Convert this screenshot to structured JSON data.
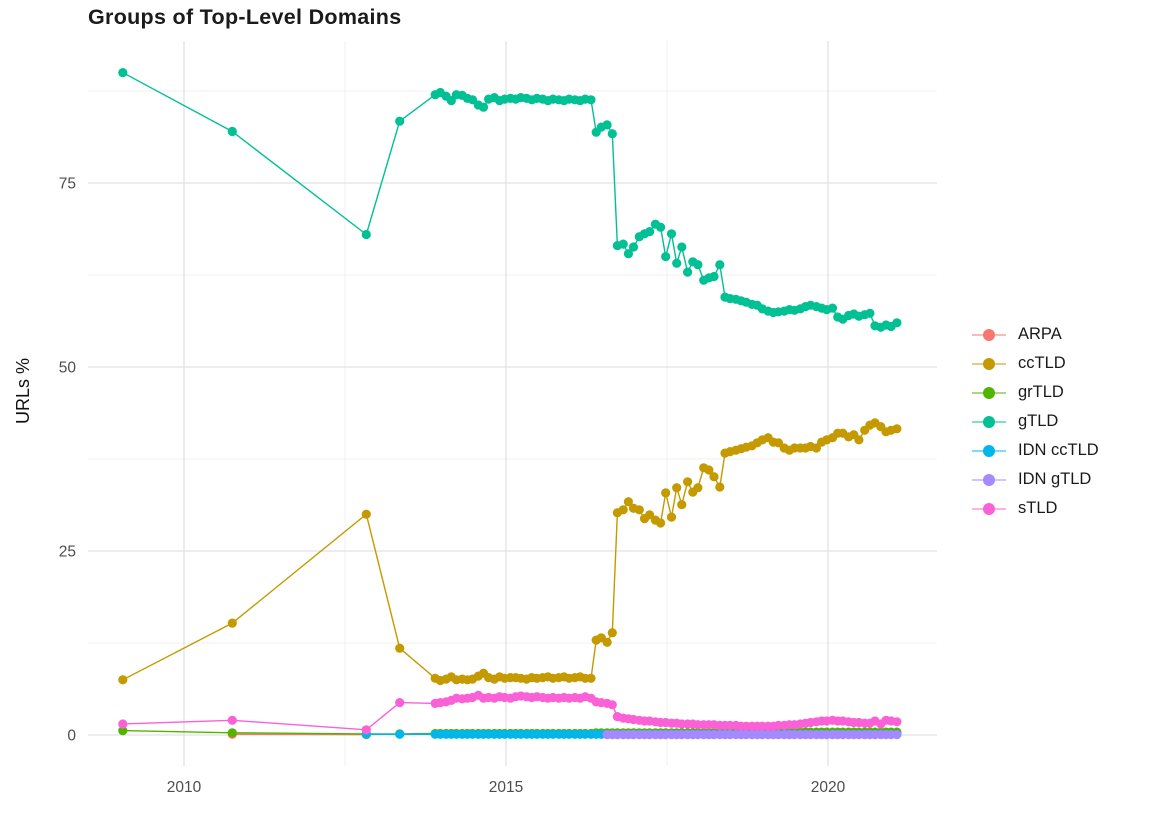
{
  "title": "Groups of Top-Level Domains",
  "y_axis_label": "URLs %",
  "colors": {
    "background": "#ffffff",
    "grid_major": "#e2e2e2",
    "grid_minor": "#f0f0f0",
    "tick_label": "#4d4d4d",
    "title_text": "#1b1b1b"
  },
  "chart_data": {
    "type": "line",
    "title": "Groups of Top-Level Domains",
    "xlabel": "",
    "ylabel": "URLs %",
    "grid": true,
    "legend_position": "right",
    "xlim": [
      2008.5,
      2021.7
    ],
    "ylim": [
      0,
      90
    ],
    "x_ticks": [
      2010,
      2015,
      2020
    ],
    "x_tick_labels": [
      "2010",
      "2015",
      "2020"
    ],
    "x_minor": [
      2012.5,
      2017.5
    ],
    "y_ticks": [
      0,
      25,
      50,
      75
    ],
    "y_tick_labels": [
      "0",
      "25",
      "50",
      "75"
    ],
    "y_minor": [
      12.5,
      37.5,
      62.5,
      87.5
    ],
    "x": [
      2009.05,
      2010.75,
      2012.83,
      2013.35,
      2013.9,
      2013.98,
      2014.07,
      2014.15,
      2014.23,
      2014.32,
      2014.4,
      2014.48,
      2014.57,
      2014.65,
      2014.73,
      2014.82,
      2014.9,
      2014.98,
      2015.07,
      2015.15,
      2015.23,
      2015.32,
      2015.4,
      2015.48,
      2015.57,
      2015.65,
      2015.73,
      2015.82,
      2015.9,
      2015.98,
      2016.07,
      2016.15,
      2016.23,
      2016.32,
      2016.4,
      2016.48,
      2016.57,
      2016.65,
      2016.73,
      2016.82,
      2016.9,
      2016.98,
      2017.07,
      2017.15,
      2017.23,
      2017.32,
      2017.4,
      2017.48,
      2017.57,
      2017.65,
      2017.73,
      2017.82,
      2017.9,
      2017.98,
      2018.07,
      2018.15,
      2018.23,
      2018.32,
      2018.4,
      2018.48,
      2018.57,
      2018.65,
      2018.73,
      2018.82,
      2018.9,
      2018.98,
      2019.07,
      2019.15,
      2019.23,
      2019.32,
      2019.4,
      2019.48,
      2019.57,
      2019.65,
      2019.73,
      2019.82,
      2019.9,
      2019.98,
      2020.07,
      2020.15,
      2020.23,
      2020.32,
      2020.4,
      2020.48,
      2020.57,
      2020.65,
      2020.73,
      2020.82,
      2020.9,
      2020.98,
      2021.07
    ],
    "series": [
      {
        "name": "ARPA",
        "color": "#F8766D",
        "values": [
          null,
          0.1,
          0.05,
          null,
          null,
          null,
          null,
          null,
          null,
          null,
          null,
          null,
          null,
          null,
          null,
          null,
          null,
          null,
          null,
          null,
          null,
          null,
          null,
          null,
          null,
          null,
          null,
          null,
          null,
          null,
          null,
          null,
          null,
          null,
          null,
          null,
          null,
          null,
          null,
          null,
          null,
          null,
          null,
          null,
          null,
          null,
          null,
          null,
          null,
          null,
          null,
          null,
          null,
          null,
          null,
          null,
          null,
          null,
          null,
          null,
          null,
          null,
          null,
          null,
          null,
          null,
          null,
          null,
          null,
          null,
          null,
          null,
          null,
          null,
          null,
          null,
          null,
          null,
          null,
          null,
          null,
          null,
          null,
          null,
          null,
          null,
          null,
          null,
          null,
          null,
          null
        ]
      },
      {
        "name": "ccTLD",
        "color": "#C49A00",
        "values": [
          7.5,
          15.2,
          30.0,
          11.8,
          7.7,
          7.4,
          7.6,
          7.9,
          7.5,
          7.6,
          7.5,
          7.6,
          8.0,
          8.4,
          7.8,
          7.6,
          7.9,
          7.7,
          7.8,
          7.8,
          7.7,
          7.6,
          7.8,
          7.7,
          7.8,
          7.9,
          7.7,
          7.8,
          7.9,
          7.7,
          7.8,
          7.9,
          7.7,
          7.7,
          12.9,
          13.2,
          12.6,
          13.9,
          30.2,
          30.6,
          31.7,
          30.8,
          30.6,
          29.4,
          29.9,
          29.2,
          28.8,
          32.9,
          29.6,
          33.6,
          31.3,
          34.4,
          33.0,
          33.6,
          36.3,
          36.0,
          35.1,
          33.7,
          38.3,
          38.5,
          38.7,
          38.9,
          39.1,
          39.3,
          39.7,
          40.1,
          40.4,
          39.8,
          39.7,
          39.0,
          38.7,
          39.0,
          39.0,
          39.0,
          39.2,
          39.0,
          39.8,
          40.1,
          40.4,
          41.0,
          41.0,
          40.5,
          40.8,
          40.1,
          41.4,
          42.1,
          42.4,
          41.9,
          41.2,
          41.4,
          41.6
        ]
      },
      {
        "name": "grTLD",
        "color": "#53B400",
        "values": [
          0.6,
          0.3,
          0.15,
          0.15,
          0.2,
          0.2,
          0.2,
          0.2,
          0.2,
          0.2,
          0.2,
          0.2,
          0.2,
          0.2,
          0.2,
          0.2,
          0.2,
          0.2,
          0.2,
          0.2,
          0.2,
          0.2,
          0.2,
          0.2,
          0.2,
          0.2,
          0.2,
          0.2,
          0.2,
          0.2,
          0.2,
          0.2,
          0.2,
          0.2,
          0.3,
          0.3,
          0.3,
          0.3,
          0.3,
          0.3,
          0.3,
          0.3,
          0.3,
          0.3,
          0.3,
          0.3,
          0.3,
          0.3,
          0.3,
          0.3,
          0.3,
          0.3,
          0.3,
          0.3,
          0.3,
          0.3,
          0.3,
          0.3,
          0.3,
          0.3,
          0.3,
          0.3,
          0.3,
          0.3,
          0.3,
          0.4,
          0.4,
          0.4,
          0.4,
          0.4,
          0.4,
          0.4,
          0.4,
          0.4,
          0.4,
          0.4,
          0.4,
          0.4,
          0.4,
          0.4,
          0.4,
          0.4,
          0.4,
          0.4,
          0.4,
          0.4,
          0.4,
          0.4,
          0.4,
          0.4,
          0.4
        ]
      },
      {
        "name": "gTLD",
        "color": "#00C094",
        "values": [
          90.0,
          82.0,
          68.0,
          83.4,
          87.0,
          87.3,
          86.8,
          86.2,
          87.0,
          86.9,
          86.5,
          86.3,
          85.6,
          85.3,
          86.4,
          86.6,
          86.2,
          86.4,
          86.5,
          86.4,
          86.6,
          86.5,
          86.3,
          86.5,
          86.4,
          86.2,
          86.4,
          86.3,
          86.2,
          86.4,
          86.3,
          86.2,
          86.4,
          86.3,
          81.9,
          82.6,
          82.9,
          81.7,
          66.5,
          66.7,
          65.4,
          66.3,
          67.7,
          68.1,
          68.4,
          69.4,
          69.0,
          65.0,
          68.1,
          64.1,
          66.3,
          62.9,
          64.3,
          63.9,
          61.8,
          62.1,
          62.3,
          63.9,
          59.5,
          59.3,
          59.2,
          59.0,
          58.8,
          58.5,
          58.4,
          57.9,
          57.6,
          57.4,
          57.5,
          57.6,
          57.8,
          57.7,
          57.9,
          58.2,
          58.4,
          58.2,
          58.0,
          57.8,
          58.0,
          56.8,
          56.5,
          57.0,
          57.2,
          56.9,
          57.1,
          57.3,
          55.6,
          55.4,
          55.7,
          55.5,
          56.0
        ]
      },
      {
        "name": "IDN ccTLD",
        "color": "#00B6EB",
        "values": [
          null,
          null,
          0.1,
          0.1,
          0.1,
          0.1,
          0.1,
          0.1,
          0.1,
          0.1,
          0.1,
          0.1,
          0.1,
          0.1,
          0.1,
          0.1,
          0.1,
          0.1,
          0.1,
          0.1,
          0.1,
          0.1,
          0.1,
          0.1,
          0.1,
          0.1,
          0.1,
          0.1,
          0.1,
          0.1,
          0.1,
          0.1,
          0.1,
          0.1,
          0.1,
          0.1,
          0.1,
          0.1,
          0.1,
          0.1,
          0.1,
          0.1,
          0.1,
          0.1,
          0.1,
          0.1,
          0.1,
          0.1,
          0.1,
          0.1,
          0.1,
          0.1,
          0.1,
          0.1,
          0.1,
          0.1,
          0.1,
          0.1,
          0.1,
          0.1,
          0.1,
          0.1,
          0.1,
          0.1,
          0.1,
          0.1,
          0.1,
          0.1,
          0.1,
          0.1,
          0.1,
          0.1,
          0.1,
          0.1,
          0.1,
          0.1,
          0.1,
          0.1,
          0.1,
          0.1,
          0.1,
          0.1,
          0.1,
          0.1,
          0.1,
          0.1,
          0.1,
          0.1,
          0.1,
          0.1,
          0.1
        ]
      },
      {
        "name": "IDN gTLD",
        "color": "#A58AFF",
        "values": [
          null,
          null,
          null,
          null,
          null,
          null,
          null,
          null,
          null,
          null,
          null,
          null,
          null,
          null,
          null,
          null,
          null,
          null,
          null,
          null,
          null,
          null,
          null,
          null,
          null,
          null,
          null,
          null,
          null,
          null,
          null,
          null,
          null,
          null,
          null,
          null,
          0.05,
          0.05,
          0.05,
          0.05,
          0.05,
          0.05,
          0.05,
          0.05,
          0.05,
          0.05,
          0.05,
          0.05,
          0.05,
          0.05,
          0.05,
          0.05,
          0.05,
          0.05,
          0.05,
          0.05,
          0.05,
          0.05,
          0.05,
          0.05,
          0.05,
          0.05,
          0.05,
          0.05,
          0.05,
          0.05,
          0.05,
          0.05,
          0.05,
          0.05,
          0.05,
          0.05,
          0.05,
          0.05,
          0.05,
          0.05,
          0.05,
          0.05,
          0.05,
          0.05,
          0.05,
          0.05,
          0.05,
          0.05,
          0.05,
          0.05,
          0.05,
          0.05,
          0.05,
          0.05,
          0.05
        ]
      },
      {
        "name": "sTLD",
        "color": "#FB61D7",
        "values": [
          1.5,
          2.0,
          0.7,
          4.4,
          4.3,
          4.4,
          4.5,
          4.7,
          5.0,
          4.9,
          5.0,
          5.1,
          5.4,
          5.0,
          5.1,
          5.0,
          5.2,
          5.1,
          5.0,
          5.2,
          5.3,
          5.2,
          5.1,
          5.2,
          5.1,
          5.0,
          5.1,
          5.0,
          5.1,
          5.0,
          5.1,
          5.0,
          5.2,
          5.0,
          4.5,
          4.4,
          4.3,
          4.1,
          2.5,
          2.3,
          2.2,
          2.1,
          2.0,
          1.9,
          1.9,
          1.8,
          1.7,
          1.7,
          1.6,
          1.6,
          1.5,
          1.5,
          1.5,
          1.4,
          1.4,
          1.4,
          1.4,
          1.3,
          1.3,
          1.3,
          1.3,
          1.2,
          1.2,
          1.2,
          1.2,
          1.2,
          1.2,
          1.2,
          1.3,
          1.3,
          1.4,
          1.4,
          1.5,
          1.6,
          1.7,
          1.8,
          1.9,
          1.9,
          2.0,
          1.9,
          1.9,
          1.8,
          1.7,
          1.7,
          1.6,
          1.6,
          1.9,
          1.5,
          2.0,
          1.9,
          1.8
        ]
      }
    ]
  }
}
